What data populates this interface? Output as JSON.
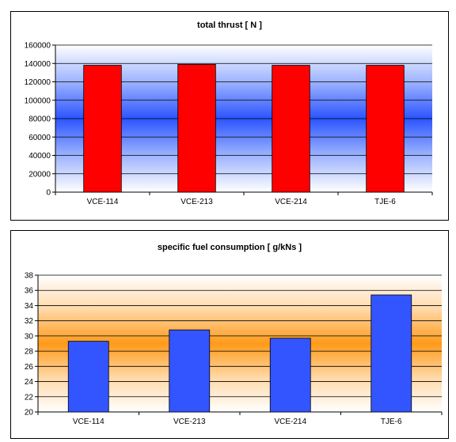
{
  "chart_data": [
    {
      "type": "bar",
      "title": "total thrust [ N ]",
      "categories": [
        "VCE-114",
        "VCE-213",
        "VCE-214",
        "TJE-6"
      ],
      "values": [
        138000,
        139000,
        138000,
        138000
      ],
      "ylim": [
        0,
        160000
      ],
      "yticks": [
        "0",
        "20000",
        "40000",
        "60000",
        "80000",
        "100000",
        "120000",
        "140000",
        "160000"
      ],
      "bar_color": "#ff0000",
      "background": "blue-gradient",
      "grid": true,
      "legend": "none"
    },
    {
      "type": "bar",
      "title": "specific fuel consumption [ g/kNs ]",
      "categories": [
        "VCE-114",
        "VCE-213",
        "VCE-214",
        "TJE-6"
      ],
      "values": [
        29.3,
        30.8,
        29.7,
        35.4
      ],
      "ylim": [
        20,
        38
      ],
      "yticks": [
        "20",
        "22",
        "24",
        "26",
        "28",
        "30",
        "32",
        "34",
        "36",
        "38"
      ],
      "bar_color": "#3355ff",
      "background": "orange-gradient",
      "grid": true,
      "legend": "none"
    }
  ]
}
